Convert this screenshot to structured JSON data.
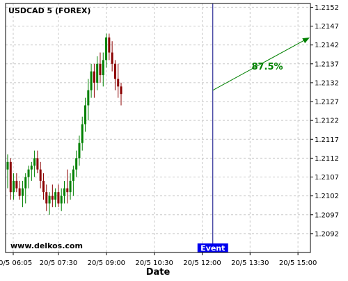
{
  "chart_data": {
    "type": "candlestick",
    "title": "USDCAD 5 (FOREX)",
    "xlabel": "Date",
    "ylabel": "",
    "watermark": "www.delkos.com",
    "ylim": [
      1.2087,
      1.2153
    ],
    "y_ticks": [
      "1.2092",
      "1.2097",
      "1.2102",
      "1.2107",
      "1.2112",
      "1.2117",
      "1.2122",
      "1.2127",
      "1.2132",
      "1.2137",
      "1.2142",
      "1.2147",
      "1.2152"
    ],
    "x_ticks": [
      "20/5 06:05",
      "20/5 07:30",
      "20/5 09:00",
      "20/5 10:30",
      "20/5 12:00",
      "20/5 13:30",
      "20/5 15:00"
    ],
    "grid": true,
    "colors": {
      "up": "#008000",
      "down": "#8b0000",
      "event_line": "#000080",
      "event_label_bg": "#0000ee",
      "forecast": "#008000"
    },
    "candles": [
      {
        "o": 1.2109,
        "h": 1.2113,
        "l": 1.2104,
        "c": 1.2111
      },
      {
        "o": 1.2111,
        "h": 1.2112,
        "l": 1.2101,
        "c": 1.2103
      },
      {
        "o": 1.2103,
        "h": 1.2108,
        "l": 1.2101,
        "c": 1.2106
      },
      {
        "o": 1.2106,
        "h": 1.2108,
        "l": 1.2103,
        "c": 1.2104
      },
      {
        "o": 1.2104,
        "h": 1.2106,
        "l": 1.2101,
        "c": 1.2102
      },
      {
        "o": 1.2102,
        "h": 1.2106,
        "l": 1.2099,
        "c": 1.2104
      },
      {
        "o": 1.2104,
        "h": 1.2108,
        "l": 1.21,
        "c": 1.2107
      },
      {
        "o": 1.2107,
        "h": 1.211,
        "l": 1.2104,
        "c": 1.2109
      },
      {
        "o": 1.2109,
        "h": 1.2111,
        "l": 1.2106,
        "c": 1.211
      },
      {
        "o": 1.211,
        "h": 1.2114,
        "l": 1.2107,
        "c": 1.2112
      },
      {
        "o": 1.2112,
        "h": 1.2114,
        "l": 1.2108,
        "c": 1.2109
      },
      {
        "o": 1.2109,
        "h": 1.2111,
        "l": 1.2104,
        "c": 1.2106
      },
      {
        "o": 1.2106,
        "h": 1.2108,
        "l": 1.2101,
        "c": 1.2103
      },
      {
        "o": 1.2103,
        "h": 1.2105,
        "l": 1.2098,
        "c": 1.21
      },
      {
        "o": 1.21,
        "h": 1.2103,
        "l": 1.2097,
        "c": 1.2102
      },
      {
        "o": 1.2102,
        "h": 1.2105,
        "l": 1.2099,
        "c": 1.2101
      },
      {
        "o": 1.2101,
        "h": 1.2104,
        "l": 1.2099,
        "c": 1.2103
      },
      {
        "o": 1.2103,
        "h": 1.2105,
        "l": 1.2099,
        "c": 1.21
      },
      {
        "o": 1.21,
        "h": 1.2104,
        "l": 1.2098,
        "c": 1.2102
      },
      {
        "o": 1.2102,
        "h": 1.2106,
        "l": 1.21,
        "c": 1.2104
      },
      {
        "o": 1.2104,
        "h": 1.2109,
        "l": 1.21,
        "c": 1.2103
      },
      {
        "o": 1.2103,
        "h": 1.2108,
        "l": 1.2101,
        "c": 1.2106
      },
      {
        "o": 1.2106,
        "h": 1.211,
        "l": 1.2102,
        "c": 1.2109
      },
      {
        "o": 1.2109,
        "h": 1.2114,
        "l": 1.2107,
        "c": 1.2112
      },
      {
        "o": 1.2112,
        "h": 1.2118,
        "l": 1.211,
        "c": 1.2116
      },
      {
        "o": 1.2116,
        "h": 1.2123,
        "l": 1.2114,
        "c": 1.2121
      },
      {
        "o": 1.2121,
        "h": 1.2128,
        "l": 1.2119,
        "c": 1.2126
      },
      {
        "o": 1.2126,
        "h": 1.2133,
        "l": 1.2122,
        "c": 1.213
      },
      {
        "o": 1.213,
        "h": 1.2137,
        "l": 1.2128,
        "c": 1.2135
      },
      {
        "o": 1.2135,
        "h": 1.2137,
        "l": 1.2128,
        "c": 1.2132
      },
      {
        "o": 1.2132,
        "h": 1.2139,
        "l": 1.213,
        "c": 1.2137
      },
      {
        "o": 1.2137,
        "h": 1.214,
        "l": 1.2132,
        "c": 1.2134
      },
      {
        "o": 1.2134,
        "h": 1.214,
        "l": 1.2131,
        "c": 1.2138
      },
      {
        "o": 1.2138,
        "h": 1.2145,
        "l": 1.2136,
        "c": 1.2144
      },
      {
        "o": 1.2144,
        "h": 1.2145,
        "l": 1.2138,
        "c": 1.214
      },
      {
        "o": 1.214,
        "h": 1.2143,
        "l": 1.2135,
        "c": 1.2137
      },
      {
        "o": 1.2137,
        "h": 1.2138,
        "l": 1.213,
        "c": 1.2133
      },
      {
        "o": 1.2133,
        "h": 1.2137,
        "l": 1.2128,
        "c": 1.2131
      },
      {
        "o": 1.2131,
        "h": 1.2132,
        "l": 1.2126,
        "c": 1.2129
      }
    ],
    "event": {
      "label": "Event",
      "x_time": "20/5 12:20"
    },
    "forecast": {
      "label": "87.5%",
      "start_value": 1.213,
      "end_value": 1.2144
    }
  }
}
